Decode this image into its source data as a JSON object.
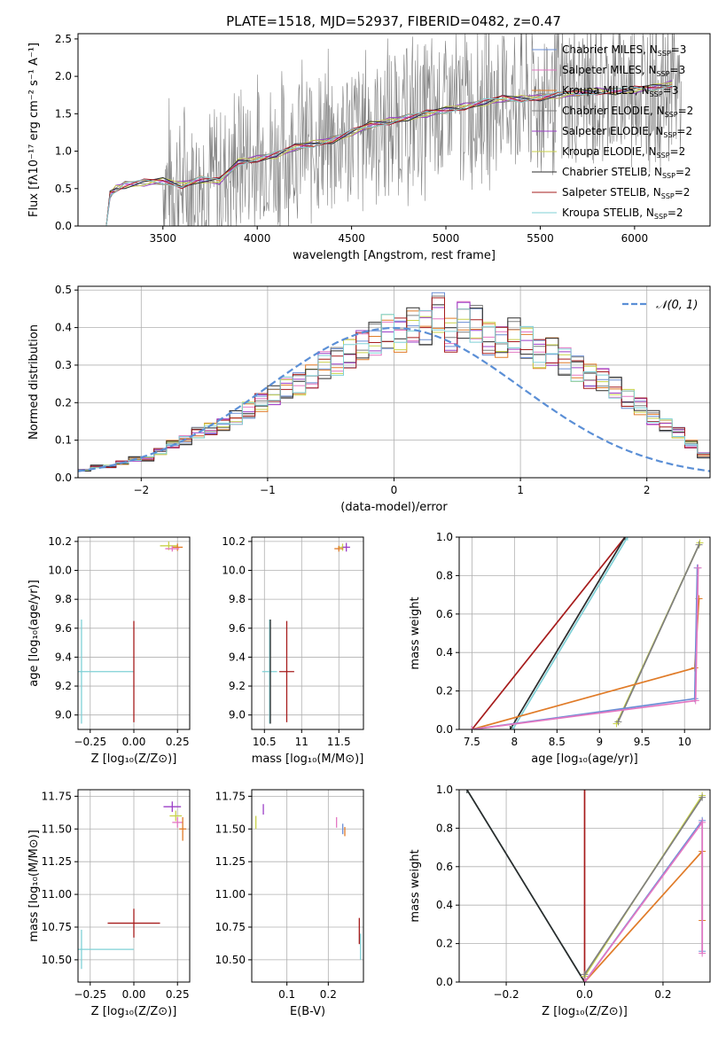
{
  "figure_title": "PLATE=1518, MJD=52937, FIBERID=0482, z=0.47",
  "colors": {
    "chabrier_miles": "#6b8fd6",
    "salpeter_miles": "#e377c2",
    "kroupa_miles": "#e07b28",
    "chabrier_elodie": "#7f7f7f",
    "salpeter_elodie": "#9b3fc7",
    "kroupa_elodie": "#c8d24a",
    "chabrier_stelib": "#2b2b2b",
    "salpeter_stelib": "#a61c1c",
    "kroupa_stelib": "#7fd0d6",
    "data_spectrum": "#808080",
    "gaussian": "#5b8fd6",
    "grid": "#b0b0b0"
  },
  "chart_data": [
    {
      "id": "spectrum",
      "type": "line",
      "title": "PLATE=1518, MJD=52937, FIBERID=0482, z=0.47",
      "xlabel": "wavelength [Angstrom, rest frame]",
      "ylabel": "Flux [fλ10⁻¹⁷ erg cm⁻² s⁻¹ A⁻¹]",
      "xlim": [
        3050,
        6400
      ],
      "ylim": [
        0,
        2.57
      ],
      "xticks": [
        3500,
        4000,
        4500,
        5000,
        5500,
        6000
      ],
      "yticks": [
        0.0,
        0.5,
        1.0,
        1.5,
        2.0,
        2.5
      ],
      "grid": false,
      "legend_placement": "top-right",
      "legend": [
        {
          "label": "Chabrier MILES, N_SSP=3",
          "color_key": "chabrier_miles"
        },
        {
          "label": "Salpeter MILES, N_SSP=3",
          "color_key": "salpeter_miles"
        },
        {
          "label": "Kroupa MILES, N_SSP=3",
          "color_key": "kroupa_miles"
        },
        {
          "label": "Chabrier ELODIE, N_SSP=2",
          "color_key": "chabrier_elodie"
        },
        {
          "label": "Salpeter ELODIE, N_SSP=2",
          "color_key": "salpeter_elodie"
        },
        {
          "label": "Kroupa ELODIE, N_SSP=2",
          "color_key": "kroupa_elodie"
        },
        {
          "label": "Chabrier STELIB, N_SSP=2",
          "color_key": "chabrier_stelib"
        },
        {
          "label": "Salpeter STELIB, N_SSP=2",
          "color_key": "salpeter_stelib"
        },
        {
          "label": "Kroupa STELIB, N_SSP=2",
          "color_key": "kroupa_stelib"
        }
      ],
      "model_continuum": {
        "x": [
          3200,
          3220,
          3250,
          3300,
          3400,
          3500,
          3600,
          3700,
          3800,
          3900,
          4000,
          4100,
          4200,
          4300,
          4400,
          4500,
          4600,
          4700,
          4800,
          4900,
          5000,
          5100,
          5200,
          5300,
          5400,
          5500,
          5600,
          5700,
          5800,
          5900,
          6000,
          6100,
          6200
        ],
        "y": [
          0.0,
          0.42,
          0.5,
          0.55,
          0.58,
          0.6,
          0.55,
          0.62,
          0.6,
          0.85,
          0.9,
          0.95,
          1.05,
          1.1,
          1.15,
          1.25,
          1.35,
          1.4,
          1.45,
          1.5,
          1.55,
          1.6,
          1.65,
          1.7,
          1.7,
          1.72,
          1.75,
          1.78,
          1.8,
          1.8,
          1.82,
          1.85,
          1.9
        ]
      },
      "data_range": {
        "x_start": 3500,
        "x_end": 6250
      }
    },
    {
      "id": "residuals",
      "type": "line",
      "xlabel": "(data-model)/error",
      "ylabel": "Normed distribution",
      "xlim": [
        -2.5,
        2.5
      ],
      "ylim": [
        0,
        0.51
      ],
      "xticks": [
        -2,
        -1,
        0,
        1,
        2
      ],
      "yticks": [
        0.0,
        0.1,
        0.2,
        0.3,
        0.4,
        0.5
      ],
      "grid": true,
      "legend_placement": "top-right",
      "legend": [
        {
          "label": "𝒩(0, 1)",
          "color_key": "gaussian",
          "style": "dashed"
        }
      ],
      "histogram": {
        "bin_start": -2.5,
        "bin_width": 0.1,
        "values": [
          0.02,
          0.03,
          0.03,
          0.04,
          0.05,
          0.05,
          0.07,
          0.09,
          0.1,
          0.12,
          0.13,
          0.14,
          0.16,
          0.18,
          0.2,
          0.22,
          0.24,
          0.25,
          0.27,
          0.3,
          0.31,
          0.33,
          0.35,
          0.37,
          0.39,
          0.38,
          0.41,
          0.4,
          0.44,
          0.38,
          0.42,
          0.41,
          0.37,
          0.36,
          0.38,
          0.36,
          0.33,
          0.34,
          0.31,
          0.29,
          0.27,
          0.26,
          0.24,
          0.21,
          0.19,
          0.16,
          0.14,
          0.12,
          0.09,
          0.06
        ]
      }
    },
    {
      "id": "age_vs_Z",
      "type": "scatter",
      "xlabel": "Z [log₁₀(Z/Z⊙)]",
      "ylabel": "age  [log₁₀(age/yr)]",
      "xlim": [
        -0.32,
        0.32
      ],
      "ylim": [
        8.9,
        10.23
      ],
      "xticks": [
        -0.25,
        0.0,
        0.25
      ],
      "xticklabels": [
        "−0.25",
        "0.00",
        "0.25"
      ],
      "yticks": [
        9.0,
        9.2,
        9.4,
        9.6,
        9.8,
        10.0,
        10.2
      ],
      "grid": true,
      "points": [
        {
          "x": -0.3,
          "y": 9.3,
          "xerr": 0.6,
          "yerr": 0.72,
          "color_key": "kroupa_stelib"
        },
        {
          "x": 0.0,
          "y": 9.3,
          "xerr": 0.0,
          "yerr": 0.7,
          "color_key": "salpeter_stelib"
        },
        {
          "x": 0.2,
          "y": 10.17,
          "xerr": 0.1,
          "yerr": 0.06,
          "color_key": "kroupa_elodie"
        },
        {
          "x": 0.25,
          "y": 10.16,
          "xerr": 0.06,
          "yerr": 0.05,
          "color_key": "kroupa_miles"
        },
        {
          "x": 0.22,
          "y": 10.15,
          "xerr": 0.08,
          "yerr": 0.04,
          "color_key": "salpeter_miles"
        }
      ]
    },
    {
      "id": "age_vs_mass",
      "type": "scatter",
      "xlabel": "mass [log₁₀(M/M⊙)]",
      "ylabel": "",
      "xlim": [
        10.33,
        11.83
      ],
      "ylim": [
        8.9,
        10.23
      ],
      "xticks": [
        10.5,
        11.0,
        11.5
      ],
      "yticks": [
        9.0,
        9.2,
        9.4,
        9.6,
        9.8,
        10.0,
        10.2
      ],
      "grid": true,
      "points": [
        {
          "x": 10.57,
          "y": 9.3,
          "xerr": 0.2,
          "yerr": 0.72,
          "color_key": "kroupa_stelib"
        },
        {
          "x": 10.58,
          "y": 9.3,
          "xerr": 0.0,
          "yerr": 0.72,
          "color_key": "chabrier_stelib"
        },
        {
          "x": 10.8,
          "y": 9.3,
          "xerr": 0.2,
          "yerr": 0.7,
          "color_key": "salpeter_stelib"
        },
        {
          "x": 11.55,
          "y": 10.16,
          "xerr": 0.12,
          "yerr": 0.05,
          "color_key": "kroupa_elodie"
        },
        {
          "x": 11.6,
          "y": 10.16,
          "xerr": 0.1,
          "yerr": 0.06,
          "color_key": "salpeter_elodie"
        },
        {
          "x": 11.5,
          "y": 10.15,
          "xerr": 0.12,
          "yerr": 0.04,
          "color_key": "kroupa_miles"
        }
      ]
    },
    {
      "id": "weight_vs_age",
      "type": "line",
      "xlabel": "age  [log₁₀(age/yr)]",
      "ylabel": "mass weight",
      "xlim": [
        7.35,
        10.3
      ],
      "ylim": [
        0,
        1.0
      ],
      "xticks": [
        7.5,
        8.0,
        8.5,
        9.0,
        9.5,
        10.0
      ],
      "yticks": [
        0.0,
        0.2,
        0.4,
        0.6,
        0.8,
        1.0
      ],
      "grid": true,
      "series": [
        {
          "color_key": "salpeter_stelib",
          "x": [
            7.5,
            9.3
          ],
          "y": [
            0.0,
            1.0
          ]
        },
        {
          "color_key": "chabrier_stelib",
          "x": [
            7.95,
            9.3
          ],
          "y": [
            0.0,
            1.0
          ]
        },
        {
          "color_key": "kroupa_stelib",
          "x": [
            7.98,
            9.33
          ],
          "y": [
            0.0,
            1.0
          ]
        },
        {
          "color_key": "kroupa_elodie",
          "x": [
            9.2,
            10.18
          ],
          "y": [
            0.03,
            0.97
          ]
        },
        {
          "color_key": "chabrier_elodie",
          "x": [
            9.22,
            10.17
          ],
          "y": [
            0.04,
            0.96
          ]
        },
        {
          "color_key": "kroupa_miles",
          "x": [
            7.5,
            10.12,
            10.17
          ],
          "y": [
            0.0,
            0.32,
            0.68
          ]
        },
        {
          "color_key": "chabrier_miles",
          "x": [
            7.5,
            10.12,
            10.15
          ],
          "y": [
            0.0,
            0.16,
            0.84
          ]
        },
        {
          "color_key": "salpeter_miles",
          "x": [
            7.5,
            10.13,
            10.16
          ],
          "y": [
            0.0,
            0.15,
            0.84
          ]
        }
      ]
    },
    {
      "id": "mass_vs_Z",
      "type": "scatter",
      "xlabel": "Z [log₁₀(Z/Z⊙)]",
      "ylabel": "mass [log₁₀(M/M⊙)]",
      "xlim": [
        -0.32,
        0.32
      ],
      "ylim": [
        10.33,
        11.8
      ],
      "xticks": [
        -0.25,
        0.0,
        0.25
      ],
      "xticklabels": [
        "−0.25",
        "0.00",
        "0.25"
      ],
      "yticks": [
        10.5,
        10.75,
        11.0,
        11.25,
        11.5,
        11.75
      ],
      "yticklabels": [
        "10.50",
        "10.75",
        "11.00",
        "11.25",
        "11.50",
        "11.75"
      ],
      "grid": true,
      "points": [
        {
          "x": 0.0,
          "y": 10.78,
          "xerr": 0.3,
          "yerr": 0.22,
          "color_key": "salpeter_stelib"
        },
        {
          "x": -0.3,
          "y": 10.58,
          "xerr": 0.6,
          "yerr": 0.3,
          "color_key": "kroupa_stelib"
        },
        {
          "x": 0.22,
          "y": 11.67,
          "xerr": 0.1,
          "yerr": 0.08,
          "color_key": "salpeter_elodie"
        },
        {
          "x": 0.24,
          "y": 11.6,
          "xerr": 0.07,
          "yerr": 0.08,
          "color_key": "kroupa_elodie"
        },
        {
          "x": 0.25,
          "y": 11.55,
          "xerr": 0.06,
          "yerr": 0.08,
          "color_key": "salpeter_miles"
        },
        {
          "x": 0.28,
          "y": 11.5,
          "xerr": 0.04,
          "yerr": 0.18,
          "color_key": "kroupa_miles"
        }
      ]
    },
    {
      "id": "mass_vs_ebv",
      "type": "scatter",
      "xlabel": "E(B-V)",
      "ylabel": "",
      "xlim": [
        0.015,
        0.285
      ],
      "ylim": [
        10.33,
        11.8
      ],
      "xticks": [
        0.1,
        0.2
      ],
      "yticks": [
        10.5,
        10.75,
        11.0,
        11.25,
        11.5,
        11.75
      ],
      "yticklabels": [
        "10.50",
        "10.75",
        "11.00",
        "11.25",
        "11.50",
        "11.75"
      ],
      "grid": true,
      "points": [
        {
          "x": 0.025,
          "y": 11.55,
          "xerr": 0.0,
          "yerr": 0.1,
          "color_key": "kroupa_elodie"
        },
        {
          "x": 0.043,
          "y": 11.65,
          "xerr": 0.0,
          "yerr": 0.08,
          "color_key": "salpeter_elodie"
        },
        {
          "x": 0.22,
          "y": 11.55,
          "xerr": 0.0,
          "yerr": 0.08,
          "color_key": "salpeter_miles"
        },
        {
          "x": 0.235,
          "y": 11.5,
          "xerr": 0.0,
          "yerr": 0.08,
          "color_key": "chabrier_miles"
        },
        {
          "x": 0.24,
          "y": 11.48,
          "xerr": 0.0,
          "yerr": 0.07,
          "color_key": "kroupa_miles"
        },
        {
          "x": 0.275,
          "y": 10.72,
          "xerr": 0.0,
          "yerr": 0.2,
          "color_key": "salpeter_stelib"
        },
        {
          "x": 0.278,
          "y": 10.6,
          "xerr": 0.0,
          "yerr": 0.2,
          "color_key": "kroupa_stelib"
        }
      ]
    },
    {
      "id": "weight_vs_Z",
      "type": "line",
      "xlabel": "Z [log₁₀(Z/Z⊙)]",
      "ylabel": "mass weight",
      "xlim": [
        -0.32,
        0.32
      ],
      "ylim": [
        0,
        1.0
      ],
      "xticks": [
        -0.2,
        0.0,
        0.2
      ],
      "xticklabels": [
        "−0.2",
        "0.0",
        "0.2"
      ],
      "yticks": [
        0.0,
        0.2,
        0.4,
        0.6,
        0.8,
        1.0
      ],
      "grid": true,
      "series": [
        {
          "color_key": "kroupa_stelib",
          "x": [
            -0.3,
            0.0,
            0.0
          ],
          "y": [
            1.0,
            0.0,
            0.03
          ]
        },
        {
          "color_key": "chabrier_stelib",
          "x": [
            -0.3,
            0.0
          ],
          "y": [
            1.0,
            0.0
          ]
        },
        {
          "color_key": "salpeter_stelib",
          "x": [
            0.0,
            0.0
          ],
          "y": [
            0.0,
            1.0
          ]
        },
        {
          "color_key": "kroupa_elodie",
          "x": [
            0.0,
            0.3
          ],
          "y": [
            0.03,
            0.97
          ]
        },
        {
          "color_key": "chabrier_elodie",
          "x": [
            0.0,
            0.3
          ],
          "y": [
            0.04,
            0.96
          ]
        },
        {
          "color_key": "kroupa_miles",
          "x": [
            0.0,
            0.3,
            0.3
          ],
          "y": [
            0.0,
            0.68,
            0.32
          ]
        },
        {
          "color_key": "chabrier_miles",
          "x": [
            0.0,
            0.3,
            0.3
          ],
          "y": [
            0.0,
            0.84,
            0.16
          ]
        },
        {
          "color_key": "salpeter_miles",
          "x": [
            0.0,
            0.3,
            0.3
          ],
          "y": [
            0.0,
            0.83,
            0.15
          ]
        }
      ]
    }
  ]
}
